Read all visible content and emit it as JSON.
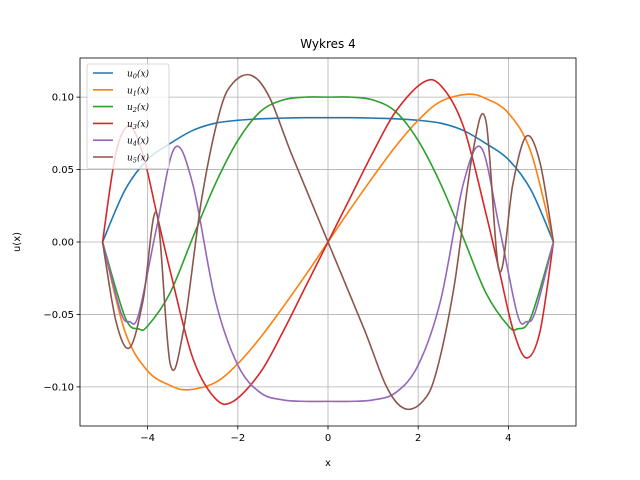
{
  "chart_data": {
    "type": "line",
    "title": "Wykres 4",
    "xlabel": "x",
    "ylabel": "u(x)",
    "xlim": [
      -5.5,
      5.5
    ],
    "ylim": [
      -0.127,
      0.127
    ],
    "xticks": [
      -4,
      -2,
      0,
      2,
      4
    ],
    "xtick_labels": [
      "−4",
      "−2",
      "0",
      "2",
      "4"
    ],
    "yticks": [
      -0.1,
      -0.05,
      0.0,
      0.05,
      0.1
    ],
    "ytick_labels": [
      "−0.10",
      "−0.05",
      "0.00",
      "0.05",
      "0.10"
    ],
    "grid": true,
    "legend_position": "top-left",
    "series": [
      {
        "name": "u0(x)",
        "color": "#1f77b4",
        "x": [
          -5,
          -4.5,
          -4,
          -3.5,
          -3,
          -2.5,
          -2,
          -1.5,
          -1,
          -0.5,
          0,
          0.5,
          1,
          1.5,
          2,
          2.5,
          3,
          3.5,
          4,
          4.5,
          5
        ],
        "y": [
          0,
          0.036,
          0.057,
          0.068,
          0.077,
          0.082,
          0.084,
          0.085,
          0.0855,
          0.0858,
          0.0858,
          0.0858,
          0.0855,
          0.085,
          0.084,
          0.082,
          0.077,
          0.068,
          0.057,
          0.036,
          0
        ]
      },
      {
        "name": "u1(x)",
        "color": "#ff7f0e",
        "x": [
          -5,
          -4.5,
          -4,
          -3.5,
          -3.1,
          -2.5,
          -2,
          -1.5,
          -1,
          -0.5,
          0,
          0.5,
          1,
          1.5,
          2,
          2.5,
          3.1,
          3.5,
          4,
          4.5,
          5
        ],
        "y": [
          0,
          -0.062,
          -0.089,
          -0.099,
          -0.102,
          -0.097,
          -0.084,
          -0.066,
          -0.045,
          -0.023,
          0,
          0.023,
          0.045,
          0.066,
          0.084,
          0.097,
          0.102,
          0.099,
          0.089,
          0.062,
          0
        ]
      },
      {
        "name": "u2(x)",
        "color": "#2ca02c",
        "x": [
          -5,
          -4.5,
          -4.2,
          -4,
          -3.5,
          -3,
          -2.5,
          -2,
          -1.5,
          -1,
          -0.5,
          0,
          0.5,
          1,
          1.5,
          2,
          2.5,
          3,
          3.5,
          4,
          4.2,
          4.5,
          5
        ],
        "y": [
          0,
          -0.052,
          -0.06,
          -0.058,
          -0.035,
          0.003,
          0.04,
          0.07,
          0.09,
          0.098,
          0.1,
          0.1,
          0.1,
          0.098,
          0.09,
          0.07,
          0.04,
          0.003,
          -0.035,
          -0.058,
          -0.06,
          -0.052,
          0
        ]
      },
      {
        "name": "u3(x)",
        "color": "#d62728",
        "x": [
          -5,
          -4.7,
          -4.4,
          -4.1,
          -3.8,
          -3.5,
          -3,
          -2.5,
          -2.1,
          -1.5,
          -1,
          -0.5,
          0,
          0.5,
          1,
          1.5,
          2.1,
          2.5,
          3,
          3.5,
          3.8,
          4.1,
          4.4,
          4.7,
          5
        ],
        "y": [
          0,
          0.062,
          0.08,
          0.06,
          0.02,
          -0.02,
          -0.08,
          -0.108,
          -0.11,
          -0.09,
          -0.062,
          -0.031,
          0,
          0.031,
          0.062,
          0.09,
          0.11,
          0.108,
          0.08,
          0.02,
          -0.02,
          -0.06,
          -0.08,
          -0.062,
          0
        ]
      },
      {
        "name": "u4(x)",
        "color": "#9467bd",
        "x": [
          -5,
          -4.6,
          -4.4,
          -4.2,
          -3.8,
          -3.4,
          -3,
          -2.5,
          -2,
          -1.5,
          -1,
          -0.5,
          0,
          0.5,
          1,
          1.5,
          2,
          2.5,
          3,
          3.4,
          3.8,
          4.2,
          4.4,
          4.6,
          5
        ],
        "y": [
          0,
          -0.048,
          -0.055,
          -0.05,
          0.01,
          0.065,
          0.04,
          -0.04,
          -0.085,
          -0.104,
          -0.109,
          -0.11,
          -0.11,
          -0.11,
          -0.109,
          -0.104,
          -0.085,
          -0.04,
          0.04,
          0.065,
          0.01,
          -0.05,
          -0.055,
          -0.048,
          0
        ]
      },
      {
        "name": "u5(x)",
        "color": "#8c564b",
        "x": [
          -5,
          -4.7,
          -4.4,
          -4.1,
          -3.8,
          -3.5,
          -3.2,
          -2.8,
          -2.4,
          -2.1,
          -1.7,
          -1.3,
          -0.8,
          0,
          0.8,
          1.3,
          1.7,
          2.1,
          2.4,
          2.8,
          3.2,
          3.5,
          3.8,
          4.1,
          4.4,
          4.7,
          5
        ],
        "y": [
          0,
          -0.055,
          -0.073,
          -0.04,
          0.02,
          -0.084,
          -0.06,
          0.03,
          0.09,
          0.11,
          0.115,
          0.1,
          0.06,
          0,
          -0.06,
          -0.1,
          -0.115,
          -0.11,
          -0.09,
          -0.03,
          0.06,
          0.084,
          -0.02,
          0.04,
          0.073,
          0.055,
          0
        ]
      }
    ]
  }
}
